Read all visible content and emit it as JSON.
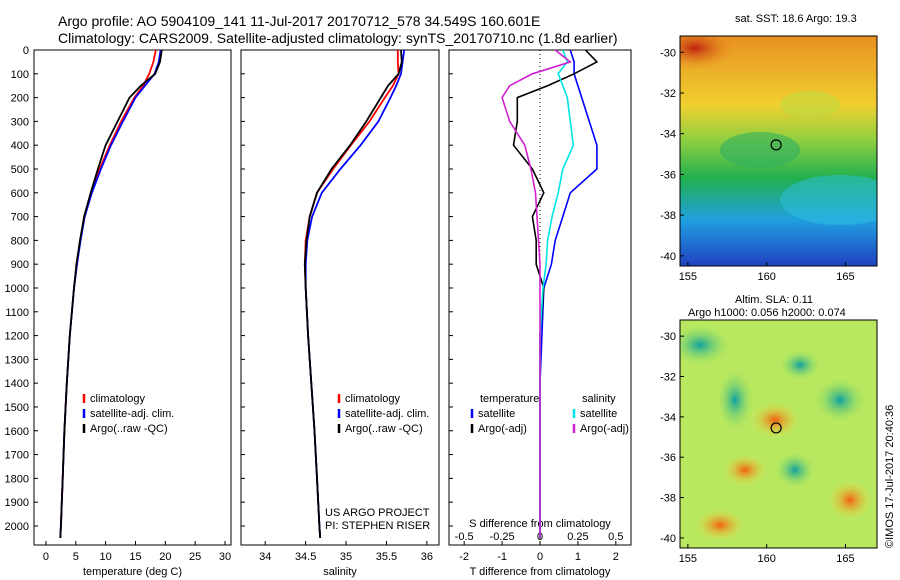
{
  "header": {
    "title_line1": "Argo profile: AO 5904109_141 11-Jul-2017 20170712_578 34.549S 160.601E",
    "title_line2": "Climatology: CARS2009. Satellite-adjusted climatology: synTS_20170710.nc (1.8d earlier)"
  },
  "colors": {
    "climatology": "#ff0000",
    "satellite": "#0000ff",
    "argo": "#000000",
    "salinity_satellite": "#00e5e5",
    "salinity_argo": "#d020d0"
  },
  "chart_data": [
    {
      "type": "line",
      "panel": "temperature",
      "xlabel": "temperature (deg C)",
      "ylabel": "",
      "xlim": [
        -2,
        31
      ],
      "ylim": [
        2080,
        0
      ],
      "xticks": [
        "0",
        "5",
        "10",
        "15",
        "20",
        "25",
        "30"
      ],
      "yticks": [
        "0",
        "100",
        "200",
        "300",
        "400",
        "500",
        "600",
        "700",
        "800",
        "900",
        "1000",
        "1100",
        "1200",
        "1300",
        "1400",
        "1500",
        "1600",
        "1700",
        "1800",
        "1900",
        "2000"
      ],
      "legend": [
        "climatology",
        "satellite-adj. clim.",
        "Argo(..raw -QC)"
      ],
      "legend_position": "bottom-right",
      "y": [
        0,
        50,
        100,
        150,
        200,
        300,
        400,
        500,
        600,
        700,
        800,
        900,
        1000,
        1200,
        1400,
        1600,
        1800,
        2000,
        2050
      ],
      "series": [
        {
          "name": "climatology",
          "values": [
            18.4,
            18.0,
            17.3,
            16.3,
            14.8,
            12.6,
            10.7,
            9.0,
            7.6,
            6.5,
            5.7,
            5.2,
            4.7,
            4.0,
            3.5,
            3.1,
            2.8,
            2.5,
            2.4
          ]
        },
        {
          "name": "satellite-adj. clim.",
          "values": [
            19.2,
            18.9,
            18.2,
            16.6,
            15.0,
            12.9,
            10.9,
            9.2,
            7.7,
            6.5,
            5.8,
            5.2,
            4.7,
            4.0,
            3.5,
            3.1,
            2.8,
            2.5,
            2.4
          ]
        },
        {
          "name": "Argo(..raw -QC)",
          "values": [
            19.4,
            19.1,
            18.3,
            15.9,
            14.0,
            12.0,
            10.0,
            8.7,
            7.5,
            6.4,
            5.7,
            5.1,
            4.7,
            4.0,
            3.5,
            3.1,
            2.8,
            2.5,
            2.4
          ]
        }
      ]
    },
    {
      "type": "line",
      "panel": "salinity",
      "xlabel": "salinity",
      "xlim": [
        33.7,
        36.15
      ],
      "ylim": [
        2080,
        0
      ],
      "xticks": [
        "34",
        "34.5",
        "35",
        "35.5",
        "36"
      ],
      "legend": [
        "climatology",
        "satellite-adj. clim.",
        "Argo(..raw -QC)"
      ],
      "legend_position": "bottom-right",
      "annotation": [
        "US ARGO PROJECT",
        "PI: STEPHEN RISER"
      ],
      "y": [
        0,
        50,
        100,
        150,
        200,
        300,
        400,
        500,
        600,
        700,
        800,
        900,
        1000,
        1200,
        1400,
        1600,
        1800,
        2000,
        2050
      ],
      "series": [
        {
          "name": "climatology",
          "values": [
            35.64,
            35.64,
            35.65,
            35.58,
            35.48,
            35.29,
            35.06,
            34.84,
            34.64,
            34.55,
            34.5,
            34.49,
            34.5,
            34.53,
            34.57,
            34.61,
            34.64,
            34.67,
            34.68
          ]
        },
        {
          "name": "satellite-adj. clim.",
          "values": [
            35.72,
            35.7,
            35.68,
            35.62,
            35.55,
            35.4,
            35.18,
            34.93,
            34.7,
            34.58,
            34.52,
            34.5,
            34.5,
            34.53,
            34.57,
            34.61,
            34.64,
            34.67,
            34.68
          ]
        },
        {
          "name": "Argo(..raw -QC)",
          "values": [
            35.68,
            35.69,
            35.65,
            35.52,
            35.43,
            35.25,
            35.05,
            34.82,
            34.64,
            34.55,
            34.51,
            34.49,
            34.5,
            34.53,
            34.57,
            34.61,
            34.64,
            34.67,
            34.68
          ]
        }
      ]
    },
    {
      "type": "line",
      "panel": "difference",
      "xlabel": "T difference from climatology",
      "xlabel_top": "S difference from climatology",
      "xlim": [
        -2.4,
        2.4
      ],
      "ylim": [
        2080,
        0
      ],
      "xticks": [
        "-2",
        "-1",
        "0",
        "1",
        "2"
      ],
      "xticks_top": [
        "-0.5",
        "-0.25",
        "0",
        "0.25",
        "0.5"
      ],
      "legend_headers": [
        "temperature",
        "salinity"
      ],
      "legend": [
        "satellite",
        "Argo(-adj)",
        "satellite",
        "Argo(-adj)"
      ],
      "y": [
        0,
        50,
        100,
        150,
        200,
        300,
        400,
        500,
        600,
        700,
        800,
        900,
        1000,
        1200,
        1400,
        1600,
        1800,
        2000,
        2050
      ],
      "series": [
        {
          "name": "satellite",
          "values": [
            0.8,
            0.9,
            0.9,
            1.0,
            1.1,
            1.3,
            1.5,
            1.5,
            0.8,
            0.6,
            0.4,
            0.3,
            0.1,
            0.05,
            0.0,
            0.0,
            0.0,
            0.0,
            0.0
          ]
        },
        {
          "name": "Argo(-adj)",
          "values": [
            1.2,
            1.5,
            0.9,
            0.2,
            -0.6,
            -0.6,
            -0.7,
            -0.2,
            0.1,
            -0.2,
            -0.1,
            -0.1,
            0.1,
            0.0,
            0.0,
            0.0,
            0.0,
            0.0,
            0.0
          ]
        },
        {
          "name": "satellite",
          "values": [
            0.15,
            0.18,
            0.12,
            0.15,
            0.18,
            0.2,
            0.22,
            0.15,
            0.12,
            0.08,
            0.05,
            0.04,
            0.02,
            0.0,
            0.0,
            0.0,
            0.0,
            0.0,
            0.0
          ]
        },
        {
          "name": "Argo(-adj)",
          "values": [
            0.1,
            0.2,
            -0.05,
            -0.2,
            -0.25,
            -0.2,
            -0.1,
            -0.06,
            -0.03,
            -0.02,
            -0.01,
            0.0,
            0.0,
            0.0,
            0.0,
            0.0,
            0.0,
            0.0,
            0.0
          ]
        }
      ]
    },
    {
      "type": "heatmap",
      "panel": "sst_map",
      "title": "sat. SST: 18.6 Argo: 19.3",
      "xlim": [
        154.5,
        167
      ],
      "ylim": [
        -40.5,
        -29.2
      ],
      "xticks": [
        "155",
        "160",
        "165"
      ],
      "yticks": [
        "-30",
        "-32",
        "-34",
        "-36",
        "-38",
        "-40"
      ],
      "marker": {
        "lon": 160.6,
        "lat": -34.55
      }
    },
    {
      "type": "heatmap",
      "panel": "sla_map",
      "title_line1": "Altim. SLA: 0.11",
      "title_line2": "Argo h1000: 0.056 h2000: 0.074",
      "xlim": [
        154.5,
        167
      ],
      "ylim": [
        -40.5,
        -29.2
      ],
      "xticks": [
        "155",
        "160",
        "165"
      ],
      "yticks": [
        "-30",
        "-32",
        "-34",
        "-36",
        "-38",
        "-40"
      ],
      "marker": {
        "lon": 160.6,
        "lat": -34.55
      }
    }
  ],
  "side_label": "©IMOS 17-Jul-2017 20:40:36"
}
